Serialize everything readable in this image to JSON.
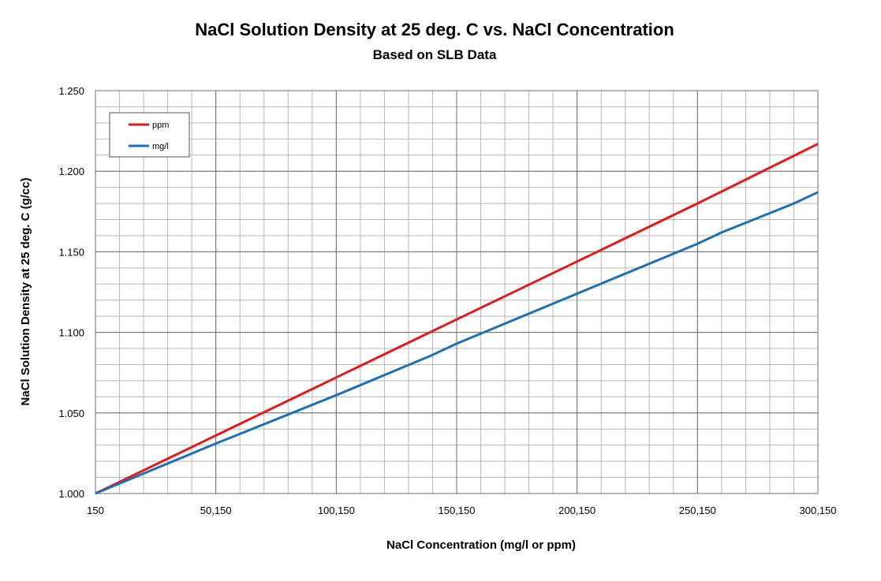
{
  "chart_data": {
    "type": "line",
    "title": "NaCl Solution Density at 25 deg. C vs. NaCl Concentration",
    "subtitle": "Based on SLB Data",
    "xlabel": "NaCl Concentration (mg/l or ppm)",
    "ylabel": "NaCl Solution Density at 25 deg. C (g/cc)",
    "xlim": [
      150,
      300150
    ],
    "ylim": [
      1.0,
      1.25
    ],
    "x_ticks": [
      150,
      50150,
      100150,
      150150,
      200150,
      250150,
      300150
    ],
    "x_tick_labels": [
      "150",
      "50,150",
      "100,150",
      "150,150",
      "200,150",
      "250,150",
      "300,150"
    ],
    "y_ticks": [
      1.0,
      1.05,
      1.1,
      1.15,
      1.2,
      1.25
    ],
    "y_tick_labels": [
      "1.000",
      "1.050",
      "1.100",
      "1.150",
      "1.200",
      "1.250"
    ],
    "x_minor_step": 10000,
    "y_minor_step": 0.01,
    "grid": true,
    "legend_position": "top-left",
    "series": [
      {
        "name": "ppm",
        "color": "#e31a1c",
        "x": [
          150,
          50150,
          100150,
          150150,
          200150,
          250150,
          300150
        ],
        "y": [
          1.0,
          1.036,
          1.072,
          1.108,
          1.144,
          1.18,
          1.217
        ]
      },
      {
        "name": "mg/l",
        "color": "#1f6fb4",
        "x": [
          150,
          50150,
          100150,
          140150,
          150150,
          200150,
          250150,
          260150,
          290150,
          300150
        ],
        "y": [
          1.0,
          1.031,
          1.061,
          1.086,
          1.093,
          1.124,
          1.155,
          1.162,
          1.18,
          1.187
        ]
      }
    ]
  }
}
